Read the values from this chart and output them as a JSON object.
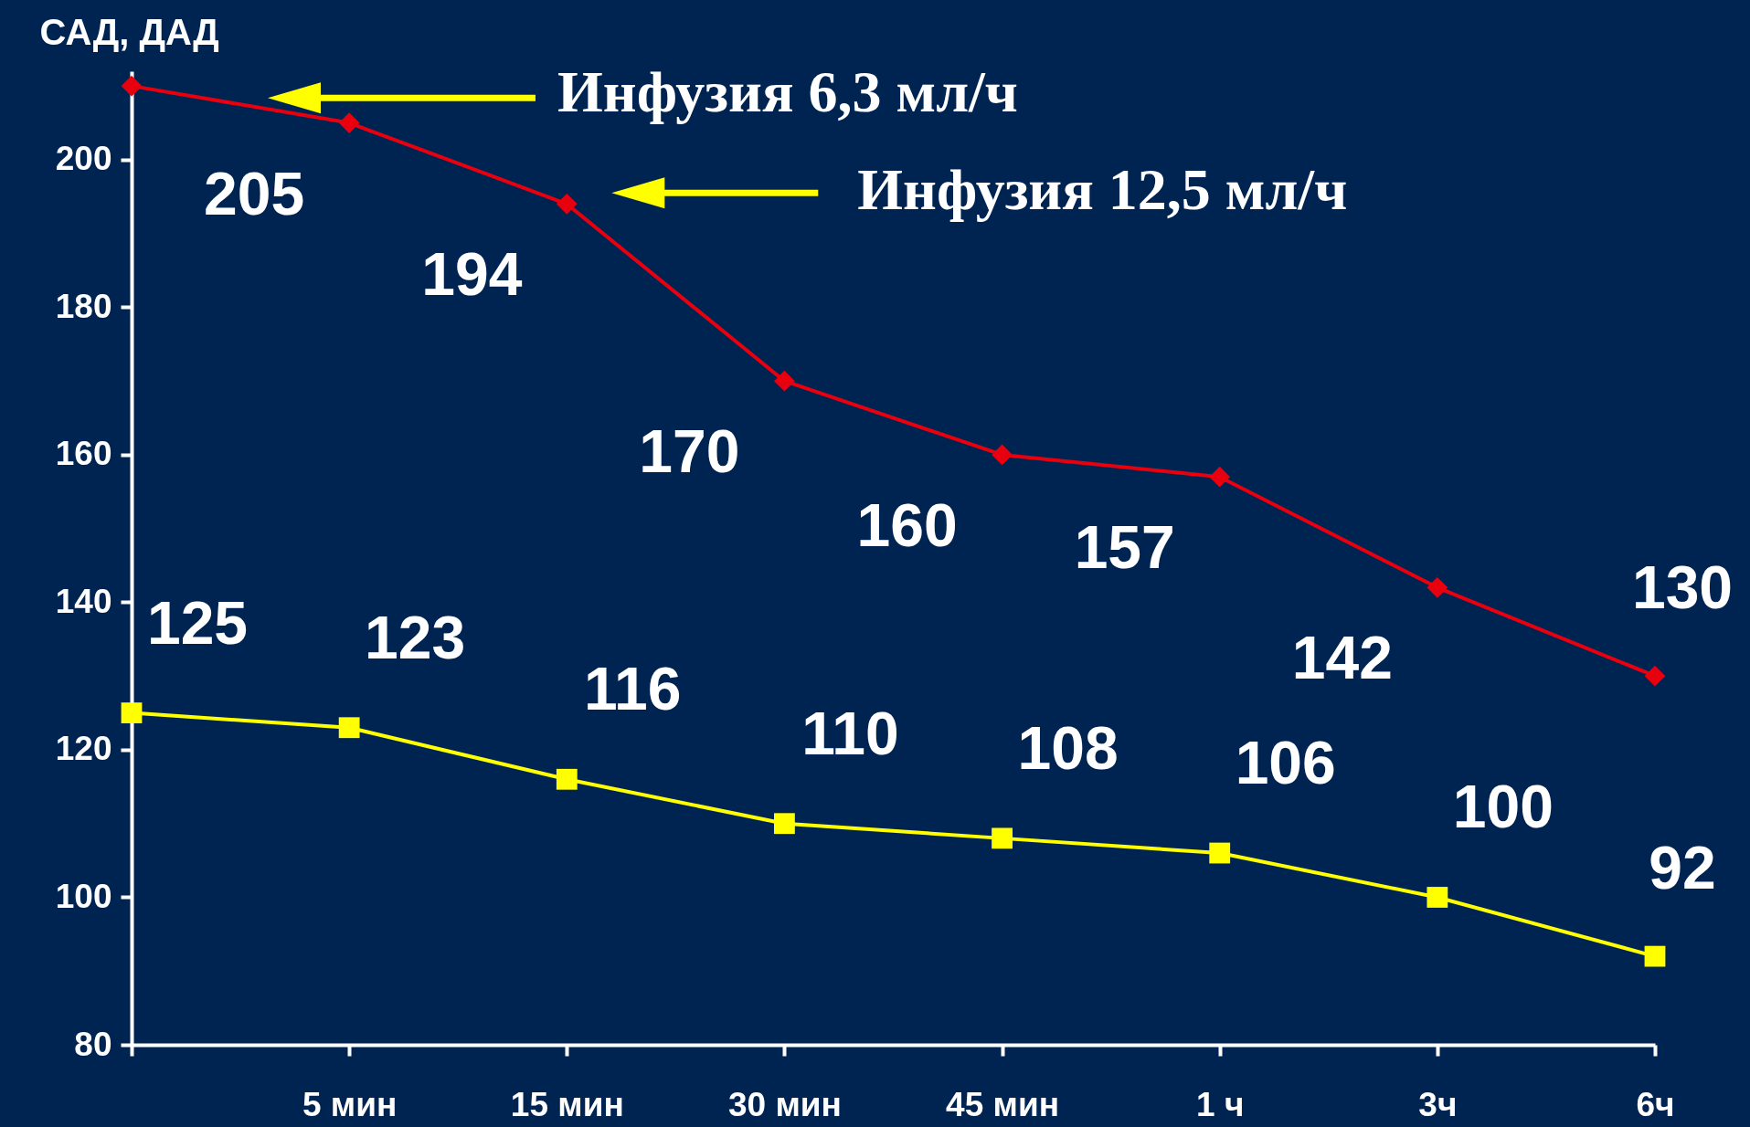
{
  "chart_data": {
    "type": "line",
    "ylabel": "САД, ДАД",
    "categories": [
      null,
      "5 мин",
      "15 мин",
      "30 мин",
      "45 мин",
      "1 ч",
      "3ч",
      "6ч"
    ],
    "series": [
      {
        "color": "#e8000f",
        "marker": "diamond",
        "values": [
          210,
          205,
          194,
          170,
          160,
          157,
          142,
          130
        ],
        "value_labels": [
          null,
          "205",
          "194",
          "170",
          "160",
          "157",
          "142",
          "130"
        ]
      },
      {
        "color": "#ffff00",
        "marker": "square",
        "values": [
          125,
          123,
          116,
          110,
          108,
          106,
          100,
          92
        ],
        "value_labels": [
          "125",
          "123",
          "116",
          "110",
          "108",
          "106",
          "100",
          "92"
        ]
      }
    ],
    "ylim": [
      80,
      212
    ],
    "yticks": [
      80,
      100,
      120,
      140,
      160,
      180,
      200
    ],
    "grid": false,
    "annotations": [
      "Инфузия 6,3 мл/ч",
      "Инфузия 12,5 мл/ч"
    ]
  }
}
